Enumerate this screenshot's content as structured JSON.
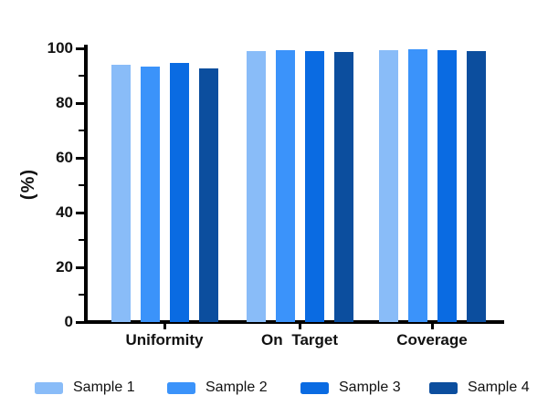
{
  "chart_data": {
    "type": "bar",
    "title": "",
    "xlabel": "",
    "ylabel": "(%)",
    "categories": [
      "Uniformity",
      "On Target",
      "Coverage"
    ],
    "series": [
      {
        "name": "Sample 1",
        "color": "#89BCF8",
        "values": [
          94.0,
          99.0,
          99.3
        ]
      },
      {
        "name": "Sample 2",
        "color": "#3B93FA",
        "values": [
          93.4,
          99.2,
          99.6
        ]
      },
      {
        "name": "Sample 3",
        "color": "#0A6BE2",
        "values": [
          94.8,
          99.0,
          99.3
        ]
      },
      {
        "name": "Sample 4",
        "color": "#0C4E9E",
        "values": [
          92.8,
          98.8,
          99.1
        ]
      }
    ],
    "ylim": [
      0,
      100
    ],
    "yticks": [
      0,
      20,
      40,
      60,
      80,
      100
    ],
    "minor_yticks": [
      10,
      30,
      50,
      70,
      90
    ],
    "grid": false,
    "legend_position": "bottom",
    "axis_color": "#000000",
    "text_color": "#111111"
  }
}
